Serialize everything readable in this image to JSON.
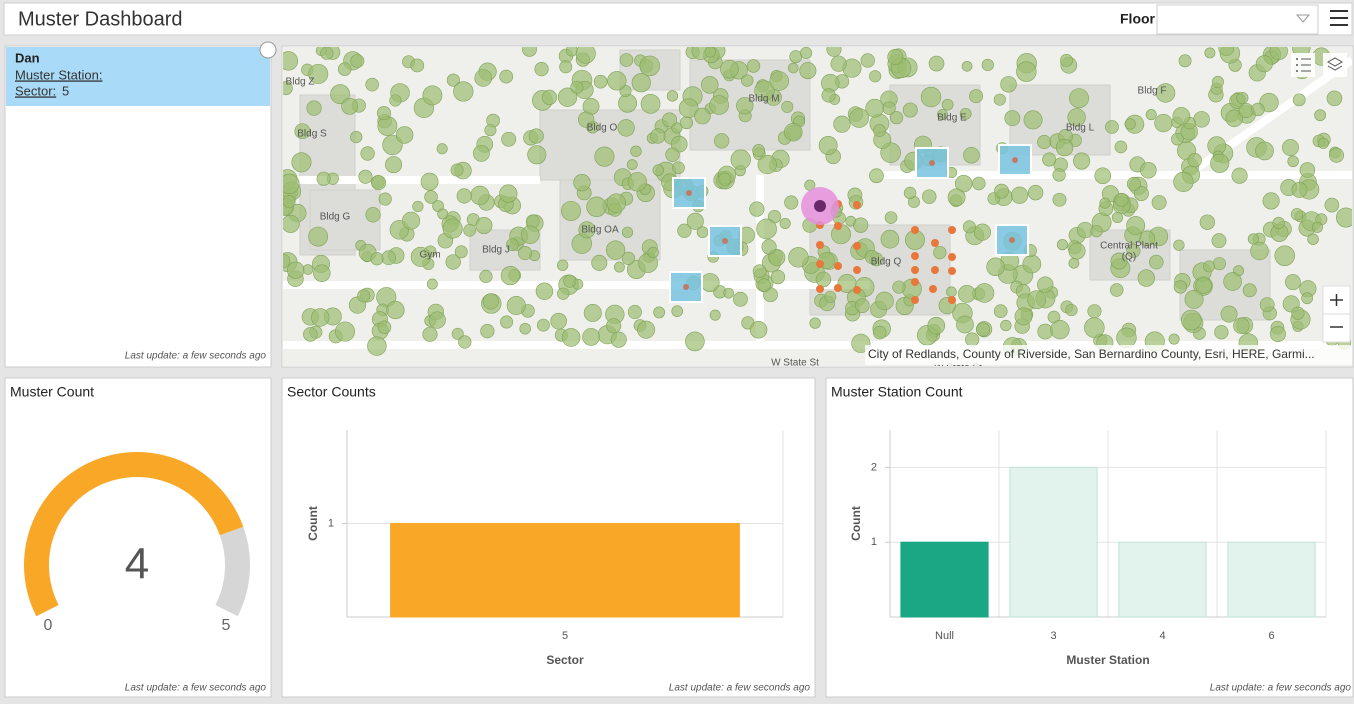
{
  "header": {
    "title": "Muster Dashboard",
    "floor_label": "Floor"
  },
  "list": {
    "items": [
      {
        "name": "Dan",
        "station_label": "Muster Station:",
        "sector_label": "Sector:",
        "sector": 5
      }
    ],
    "footer": "Last update: a few seconds ago"
  },
  "map": {
    "labels": [
      "Bldg Z",
      "Bldg S",
      "Bldg G",
      "Bldg O",
      "Bldg M",
      "Bldg OA",
      "Gym",
      "Bldg J",
      "Bldg E",
      "Bldg L",
      "Bldg F",
      "Bldg Q",
      "Central Plant",
      "(Q)",
      "W State St",
      "W State St"
    ],
    "attribution": "City of Redlands, County of Riverside, San Bernardino County, Esri, HERE, Garmi..."
  },
  "gauge": {
    "title": "Muster Count",
    "value": 4,
    "min": 0,
    "max": 5,
    "color": "#f9a727",
    "track_color": "#d6d6d6",
    "footer": "Last update: a few seconds ago"
  },
  "sector_chart": {
    "type": "bar",
    "title": "Sector Counts",
    "x_label": "Sector",
    "y_label": "Count",
    "categories": [
      "5"
    ],
    "values": [
      1
    ],
    "colors": [
      "#f9a727"
    ],
    "ylim": [
      0,
      2
    ],
    "yticks": [
      1
    ],
    "grid": true,
    "footer": "Last update: a few seconds ago"
  },
  "station_chart": {
    "type": "bar",
    "title": "Muster Station Count",
    "x_label": "Muster Station",
    "y_label": "Count",
    "categories": [
      "Null",
      "3",
      "4",
      "6"
    ],
    "values": [
      1,
      2,
      1,
      1
    ],
    "colors": [
      "#1aa784",
      "#e2f3ee",
      "#e2f3ee",
      "#e2f3ee"
    ],
    "ylim": [
      0,
      2.5
    ],
    "yticks": [
      1,
      2
    ],
    "grid": true,
    "footer": "Last update: a few seconds ago"
  }
}
